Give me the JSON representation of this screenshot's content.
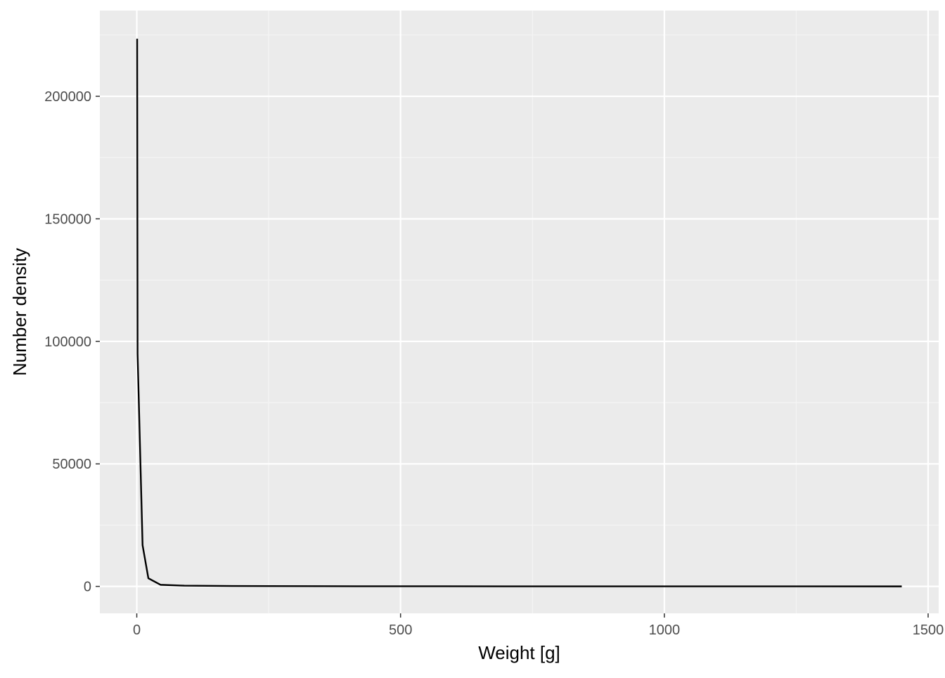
{
  "chart_data": {
    "type": "line",
    "title": "",
    "xlabel": "Weight [g]",
    "ylabel": "Number density",
    "xlim": [
      -70,
      1520
    ],
    "ylim": [
      -11000,
      235000
    ],
    "x_ticks": [
      0,
      500,
      1000,
      1500
    ],
    "x_tick_labels": [
      "0",
      "500",
      "1000",
      "1500"
    ],
    "x_minor_ticks": [
      250,
      750,
      1250
    ],
    "y_ticks": [
      0,
      50000,
      100000,
      150000,
      200000
    ],
    "y_tick_labels": [
      "0",
      "50000",
      "100000",
      "150000",
      "200000"
    ],
    "y_minor_ticks": [
      25000,
      75000,
      125000,
      175000,
      225000
    ],
    "grid": true,
    "legend": "none",
    "series": [
      {
        "x": [
          0.7,
          1.5,
          11,
          22,
          45,
          90,
          180,
          350,
          700,
          1100,
          1450
        ],
        "y": [
          223500,
          95000,
          16800,
          3300,
          650,
          300,
          170,
          80,
          30,
          10,
          5
        ],
        "color": "#000000"
      }
    ],
    "colors": {
      "panel_background": "#ebebeb",
      "grid_major": "#ffffff",
      "grid_minor": "#f5f5f5",
      "line": "#000000",
      "tick_label": "#4d4d4d",
      "tick_mark": "#333333"
    }
  }
}
